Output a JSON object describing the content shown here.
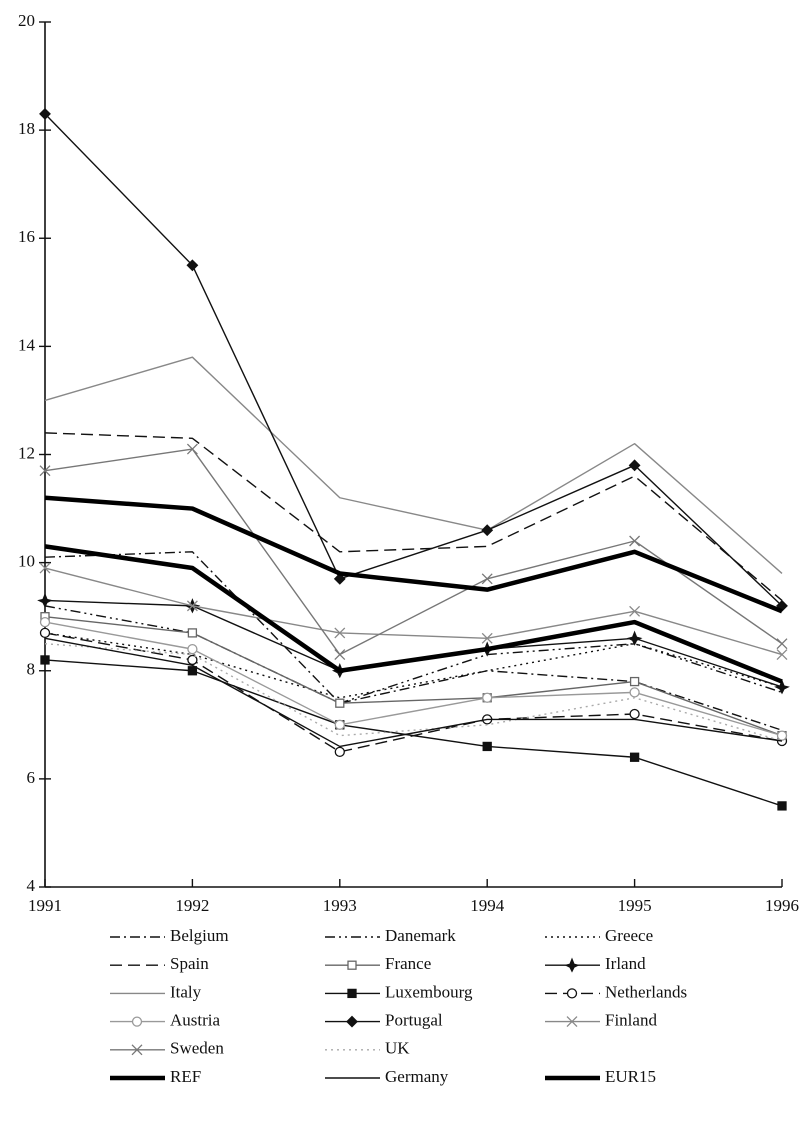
{
  "chart_data": {
    "type": "line",
    "categories": [
      "1991",
      "1992",
      "1993",
      "1994",
      "1995",
      "1996"
    ],
    "ylim": [
      4,
      20
    ],
    "yticks": [
      4,
      6,
      8,
      10,
      12,
      14,
      16,
      18,
      20
    ],
    "series": [
      {
        "name": "Belgium",
        "color": "#111",
        "dash": "dashdot",
        "marker": "none",
        "values": [
          10.1,
          10.2,
          7.4,
          8.0,
          7.8,
          6.9
        ]
      },
      {
        "name": "Danemark",
        "color": "#111",
        "dash": "dashdotdot",
        "marker": "none",
        "values": [
          9.2,
          8.7,
          7.4,
          8.3,
          8.5,
          7.6
        ]
      },
      {
        "name": "Greece",
        "color": "#111",
        "dash": "dotted",
        "marker": "none",
        "values": [
          8.7,
          8.3,
          7.5,
          8.0,
          8.5,
          7.7
        ]
      },
      {
        "name": "Spain",
        "color": "#111",
        "dash": "dashed",
        "marker": "none",
        "values": [
          12.4,
          12.3,
          10.2,
          10.3,
          11.6,
          9.3
        ]
      },
      {
        "name": "France",
        "color": "#666",
        "dash": "solid",
        "marker": "open-square",
        "values": [
          9.0,
          8.7,
          7.4,
          7.5,
          7.8,
          6.8
        ]
      },
      {
        "name": "Irland",
        "color": "#111",
        "dash": "solid",
        "marker": "star",
        "values": [
          9.3,
          9.2,
          8.0,
          8.4,
          8.6,
          7.7
        ]
      },
      {
        "name": "Italy",
        "color": "#888",
        "dash": "solid",
        "marker": "none",
        "values": [
          13.0,
          13.8,
          11.2,
          10.6,
          12.2,
          9.8
        ]
      },
      {
        "name": "Luxembourg",
        "color": "#111",
        "dash": "solid",
        "marker": "square",
        "values": [
          8.2,
          8.0,
          7.0,
          6.6,
          6.4,
          5.5
        ]
      },
      {
        "name": "Netherlands",
        "color": "#111",
        "dash": "dashed",
        "marker": "open-circle",
        "values": [
          8.7,
          8.2,
          6.5,
          7.1,
          7.2,
          6.7
        ]
      },
      {
        "name": "Austria",
        "color": "#999",
        "dash": "solid",
        "marker": "open-circle",
        "values": [
          8.9,
          8.4,
          7.0,
          7.5,
          7.6,
          6.8
        ]
      },
      {
        "name": "Portugal",
        "color": "#111",
        "dash": "solid",
        "marker": "diamond",
        "values": [
          18.3,
          15.5,
          9.7,
          10.6,
          11.8,
          9.2
        ]
      },
      {
        "name": "Finland",
        "color": "#888",
        "dash": "solid",
        "marker": "x",
        "values": [
          9.9,
          9.2,
          8.7,
          8.6,
          9.1,
          8.3
        ]
      },
      {
        "name": "Sweden",
        "color": "#777",
        "dash": "solid",
        "marker": "x",
        "values": [
          11.7,
          12.1,
          8.3,
          9.7,
          10.4,
          8.5
        ]
      },
      {
        "name": "UK",
        "color": "#aaa",
        "dash": "dotted",
        "marker": "none",
        "values": [
          8.5,
          8.3,
          6.8,
          7.0,
          7.5,
          6.7
        ]
      },
      {
        "name": "REF",
        "color": "#000",
        "dash": "solid",
        "marker": "none",
        "weight": "bold",
        "values": [
          11.2,
          11.0,
          9.8,
          9.5,
          10.2,
          9.1
        ]
      },
      {
        "name": "Germany",
        "color": "#111",
        "dash": "solid",
        "marker": "none",
        "values": [
          8.6,
          8.1,
          6.6,
          7.1,
          7.1,
          6.7
        ]
      },
      {
        "name": "EUR15",
        "color": "#000",
        "dash": "solid",
        "marker": "none",
        "weight": "bold",
        "values": [
          10.3,
          9.9,
          8.0,
          8.4,
          8.9,
          7.8
        ]
      }
    ]
  }
}
